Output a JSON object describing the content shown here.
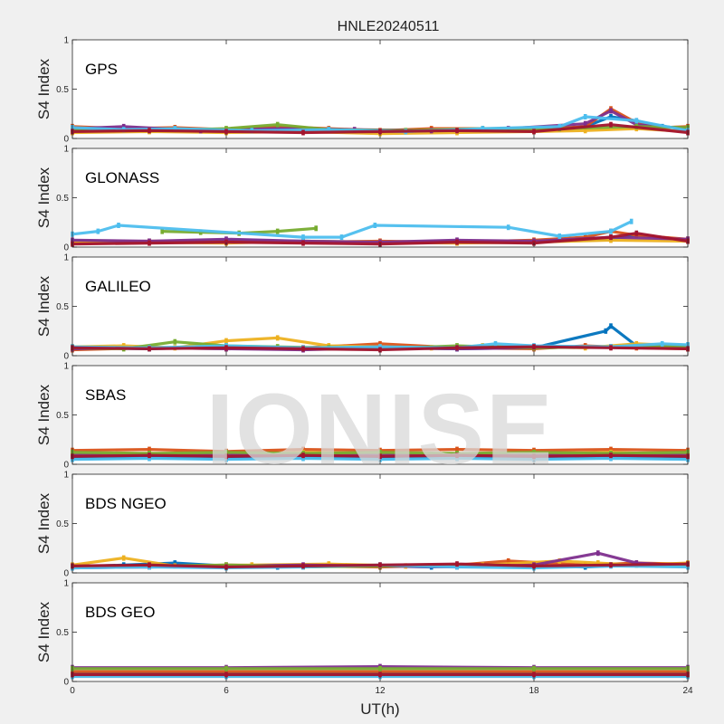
{
  "chart_data": {
    "type": "scatter",
    "title": "HNLE20240511",
    "xlabel": "UT(h)",
    "ylabel": "S4 Index",
    "xlim": [
      0,
      24
    ],
    "ylim": [
      0,
      1
    ],
    "x_ticks": [
      "0",
      "6",
      "12",
      "18",
      "24"
    ],
    "y_ticks": [
      "0",
      "0.5",
      "1"
    ],
    "grid": false,
    "watermark": "IONISE",
    "series_colors": [
      "#0072BD",
      "#D95319",
      "#EDB120",
      "#7E2F8E",
      "#77AC30",
      "#4DBEEE",
      "#A2142F"
    ],
    "panels": [
      {
        "label": "GPS",
        "series": [
          {
            "x": [
              0,
              2,
              4,
              6,
              8,
              10,
              12,
              14,
              16,
              18,
              20,
              21,
              22,
              23,
              24
            ],
            "y": [
              0.08,
              0.1,
              0.09,
              0.08,
              0.1,
              0.08,
              0.07,
              0.08,
              0.09,
              0.08,
              0.12,
              0.22,
              0.18,
              0.12,
              0.1
            ]
          },
          {
            "x": [
              0,
              2,
              4,
              6,
              8,
              10,
              12,
              14,
              16,
              18,
              20,
              21,
              22,
              23,
              24
            ],
            "y": [
              0.12,
              0.1,
              0.11,
              0.09,
              0.12,
              0.1,
              0.08,
              0.1,
              0.1,
              0.09,
              0.12,
              0.3,
              0.16,
              0.11,
              0.12
            ]
          },
          {
            "x": [
              0,
              3,
              6,
              9,
              12,
              15,
              18,
              20,
              22,
              24
            ],
            "y": [
              0.06,
              0.07,
              0.06,
              0.07,
              0.05,
              0.06,
              0.07,
              0.08,
              0.1,
              0.07
            ]
          },
          {
            "x": [
              0,
              2,
              5,
              8,
              11,
              14,
              17,
              20,
              21,
              22,
              24
            ],
            "y": [
              0.1,
              0.12,
              0.08,
              0.1,
              0.09,
              0.08,
              0.1,
              0.15,
              0.28,
              0.14,
              0.1
            ]
          },
          {
            "x": [
              0,
              3,
              6,
              8,
              10,
              13,
              16,
              19,
              22,
              24
            ],
            "y": [
              0.09,
              0.08,
              0.1,
              0.14,
              0.09,
              0.08,
              0.1,
              0.1,
              0.12,
              0.11
            ]
          },
          {
            "x": [
              0,
              2,
              4,
              7,
              10,
              13,
              16,
              19,
              20,
              22,
              24
            ],
            "y": [
              0.11,
              0.09,
              0.1,
              0.08,
              0.09,
              0.07,
              0.1,
              0.12,
              0.22,
              0.18,
              0.08
            ]
          },
          {
            "x": [
              0,
              3,
              6,
              9,
              12,
              15,
              18,
              21,
              24
            ],
            "y": [
              0.07,
              0.08,
              0.07,
              0.06,
              0.07,
              0.08,
              0.07,
              0.14,
              0.06
            ]
          }
        ]
      },
      {
        "label": "GLONASS",
        "series": [
          {
            "x": [
              0,
              3,
              6,
              9,
              12,
              15,
              18,
              21,
              22,
              24
            ],
            "y": [
              0.06,
              0.05,
              0.07,
              0.06,
              0.05,
              0.06,
              0.05,
              0.08,
              0.12,
              0.07
            ]
          },
          {
            "x": [
              0,
              3,
              6,
              9,
              12,
              15,
              18,
              20,
              21,
              22,
              24
            ],
            "y": [
              0.05,
              0.06,
              0.06,
              0.05,
              0.06,
              0.05,
              0.07,
              0.1,
              0.16,
              0.12,
              0.08
            ]
          },
          {
            "x": [
              0,
              3,
              6,
              9,
              12,
              15,
              18,
              21,
              24
            ],
            "y": [
              0.04,
              0.05,
              0.04,
              0.06,
              0.05,
              0.04,
              0.05,
              0.07,
              0.06
            ]
          },
          {
            "x": [
              0,
              3,
              6,
              9,
              12,
              15,
              18,
              21,
              24
            ],
            "y": [
              0.07,
              0.06,
              0.08,
              0.06,
              0.05,
              0.07,
              0.06,
              0.1,
              0.08
            ]
          },
          {
            "x": [
              3.5,
              5,
              6.5,
              8,
              9.5
            ],
            "y": [
              0.16,
              0.15,
              0.14,
              0.16,
              0.19
            ]
          },
          {
            "x": [
              0,
              1,
              1.8,
              9,
              10.5,
              11.8,
              17,
              19,
              21,
              21.8
            ],
            "y": [
              0.13,
              0.16,
              0.22,
              0.1,
              0.1,
              0.22,
              0.2,
              0.11,
              0.16,
              0.26
            ]
          },
          {
            "x": [
              0,
              3,
              6,
              9,
              12,
              15,
              18,
              21,
              22,
              24
            ],
            "y": [
              0.03,
              0.04,
              0.05,
              0.04,
              0.03,
              0.05,
              0.04,
              0.1,
              0.14,
              0.06
            ]
          }
        ]
      },
      {
        "label": "GALILEO",
        "series": [
          {
            "x": [
              0,
              3,
              6,
              9,
              12,
              15,
              18,
              20.8,
              21,
              22,
              24
            ],
            "y": [
              0.08,
              0.07,
              0.09,
              0.07,
              0.08,
              0.07,
              0.08,
              0.25,
              0.3,
              0.1,
              0.08
            ]
          },
          {
            "x": [
              0,
              3,
              6,
              9,
              12,
              15,
              18,
              20,
              22,
              24
            ],
            "y": [
              0.06,
              0.08,
              0.07,
              0.08,
              0.12,
              0.08,
              0.07,
              0.1,
              0.08,
              0.07
            ]
          },
          {
            "x": [
              0,
              2,
              4,
              6,
              8,
              10,
              12,
              14,
              16,
              18,
              20,
              22,
              24
            ],
            "y": [
              0.09,
              0.1,
              0.08,
              0.15,
              0.18,
              0.1,
              0.09,
              0.08,
              0.1,
              0.09,
              0.08,
              0.12,
              0.1
            ]
          },
          {
            "x": [
              0,
              3,
              6,
              9,
              12,
              15,
              18,
              21,
              24
            ],
            "y": [
              0.07,
              0.08,
              0.07,
              0.06,
              0.08,
              0.07,
              0.08,
              0.09,
              0.1
            ]
          },
          {
            "x": [
              0,
              2,
              4,
              6,
              8,
              10,
              12,
              15,
              18,
              21,
              24
            ],
            "y": [
              0.08,
              0.07,
              0.14,
              0.1,
              0.09,
              0.08,
              0.07,
              0.1,
              0.08,
              0.09,
              0.1
            ]
          },
          {
            "x": [
              0,
              3,
              6,
              9,
              12,
              15,
              16.5,
              18,
              21,
              23,
              24
            ],
            "y": [
              0.09,
              0.08,
              0.1,
              0.08,
              0.09,
              0.08,
              0.12,
              0.1,
              0.09,
              0.12,
              0.11
            ]
          },
          {
            "x": [
              0,
              3,
              6,
              9,
              12,
              15,
              18,
              21,
              24
            ],
            "y": [
              0.08,
              0.07,
              0.08,
              0.07,
              0.06,
              0.08,
              0.09,
              0.08,
              0.07
            ]
          }
        ]
      },
      {
        "label": "SBAS",
        "series": [
          {
            "x": [
              0,
              3,
              6,
              9,
              12,
              15,
              18,
              21,
              24
            ],
            "y": [
              0.06,
              0.07,
              0.06,
              0.07,
              0.06,
              0.07,
              0.06,
              0.07,
              0.06
            ]
          },
          {
            "x": [
              0,
              3,
              6,
              9,
              12,
              15,
              18,
              21,
              24
            ],
            "y": [
              0.14,
              0.15,
              0.13,
              0.15,
              0.14,
              0.15,
              0.14,
              0.15,
              0.14
            ]
          },
          {
            "x": [
              0,
              3,
              6,
              9,
              12,
              15,
              18,
              21,
              24
            ],
            "y": [
              0.1,
              0.11,
              0.1,
              0.12,
              0.11,
              0.1,
              0.11,
              0.12,
              0.1
            ]
          },
          {
            "x": [
              0,
              3,
              6,
              9,
              12,
              15,
              18,
              21,
              24
            ],
            "y": [
              0.09,
              0.1,
              0.09,
              0.1,
              0.09,
              0.1,
              0.09,
              0.1,
              0.09
            ]
          },
          {
            "x": [
              0,
              3,
              6,
              9,
              12,
              15,
              18,
              21,
              24
            ],
            "y": [
              0.12,
              0.11,
              0.12,
              0.11,
              0.12,
              0.11,
              0.12,
              0.11,
              0.12
            ]
          },
          {
            "x": [
              0,
              3,
              6,
              9,
              12,
              15,
              18,
              21,
              24
            ],
            "y": [
              0.05,
              0.06,
              0.05,
              0.06,
              0.05,
              0.06,
              0.05,
              0.06,
              0.05
            ]
          },
          {
            "x": [
              0,
              3,
              6,
              9,
              12,
              15,
              18,
              21,
              24
            ],
            "y": [
              0.08,
              0.09,
              0.08,
              0.09,
              0.08,
              0.09,
              0.08,
              0.09,
              0.08
            ]
          }
        ]
      },
      {
        "label": "BDS NGEO",
        "series": [
          {
            "x": [
              0,
              2,
              4,
              6,
              8,
              10,
              12,
              14,
              16,
              18,
              20,
              22,
              24
            ],
            "y": [
              0.06,
              0.08,
              0.1,
              0.07,
              0.06,
              0.08,
              0.07,
              0.06,
              0.08,
              0.07,
              0.06,
              0.08,
              0.07
            ]
          },
          {
            "x": [
              0,
              3,
              6,
              9,
              12,
              15,
              17,
              18.5,
              20,
              22,
              24
            ],
            "y": [
              0.07,
              0.06,
              0.08,
              0.07,
              0.06,
              0.08,
              0.12,
              0.1,
              0.08,
              0.1,
              0.09
            ]
          },
          {
            "x": [
              0,
              2,
              4,
              7,
              10,
              13,
              16,
              19,
              20.5,
              22,
              24
            ],
            "y": [
              0.08,
              0.15,
              0.07,
              0.08,
              0.09,
              0.07,
              0.08,
              0.12,
              0.1,
              0.08,
              0.1
            ]
          },
          {
            "x": [
              0,
              3,
              6,
              9,
              12,
              15,
              18,
              20.5,
              22,
              24
            ],
            "y": [
              0.05,
              0.06,
              0.07,
              0.08,
              0.07,
              0.06,
              0.08,
              0.2,
              0.1,
              0.07
            ]
          },
          {
            "x": [
              0,
              3,
              6,
              9,
              12,
              15,
              18,
              21,
              24
            ],
            "y": [
              0.06,
              0.07,
              0.08,
              0.06,
              0.07,
              0.08,
              0.06,
              0.08,
              0.07
            ]
          },
          {
            "x": [
              0,
              3,
              6,
              9,
              12,
              15,
              18,
              21,
              24
            ],
            "y": [
              0.05,
              0.06,
              0.05,
              0.06,
              0.08,
              0.06,
              0.05,
              0.07,
              0.06
            ]
          },
          {
            "x": [
              0,
              3,
              6,
              9,
              12,
              15,
              18,
              21,
              24
            ],
            "y": [
              0.07,
              0.08,
              0.06,
              0.07,
              0.08,
              0.09,
              0.07,
              0.08,
              0.09
            ]
          }
        ]
      },
      {
        "label": "BDS GEO",
        "series": [
          {
            "x": [
              0,
              6,
              12,
              18,
              24
            ],
            "y": [
              0.08,
              0.08,
              0.08,
              0.08,
              0.08
            ]
          },
          {
            "x": [
              0,
              6,
              12,
              18,
              24
            ],
            "y": [
              0.1,
              0.1,
              0.1,
              0.1,
              0.1
            ]
          },
          {
            "x": [
              0,
              6,
              12,
              18,
              24
            ],
            "y": [
              0.06,
              0.06,
              0.06,
              0.06,
              0.06
            ]
          },
          {
            "x": [
              0,
              6,
              12,
              18,
              24
            ],
            "y": [
              0.14,
              0.14,
              0.15,
              0.14,
              0.14
            ]
          },
          {
            "x": [
              0,
              6,
              12,
              18,
              24
            ],
            "y": [
              0.13,
              0.13,
              0.13,
              0.13,
              0.13
            ]
          },
          {
            "x": [
              0,
              6,
              12,
              18,
              24
            ],
            "y": [
              0.05,
              0.05,
              0.05,
              0.05,
              0.05
            ]
          },
          {
            "x": [
              0,
              6,
              12,
              18,
              24
            ],
            "y": [
              0.07,
              0.07,
              0.07,
              0.07,
              0.07
            ]
          }
        ]
      }
    ]
  }
}
